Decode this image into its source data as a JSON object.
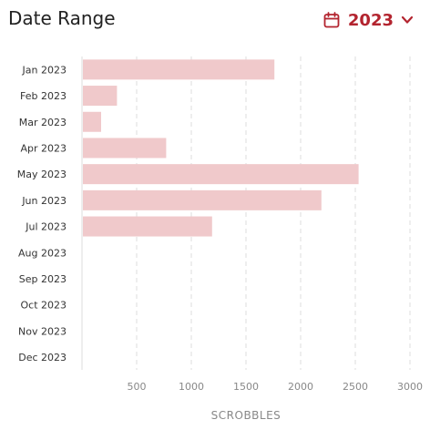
{
  "header": {
    "title": "Date Range",
    "year": "2023",
    "icons": {
      "calendar": "calendar-icon",
      "chevron": "chevron-down-icon"
    }
  },
  "colors": {
    "bar": "#f0c9cb",
    "accent": "#b3242f",
    "grid": "#dddddd",
    "tick": "#888888",
    "label": "#333333"
  },
  "chart_data": {
    "type": "bar",
    "orientation": "horizontal",
    "categories": [
      "Jan 2023",
      "Feb 2023",
      "Mar 2023",
      "Apr 2023",
      "May 2023",
      "Jun 2023",
      "Jul 2023",
      "Aug 2023",
      "Sep 2023",
      "Oct 2023",
      "Nov 2023",
      "Dec 2023"
    ],
    "values": [
      1760,
      320,
      175,
      770,
      2530,
      2190,
      1190,
      0,
      0,
      0,
      0,
      0
    ],
    "xlabel": "SCROBBLES",
    "xticks": [
      500,
      1000,
      1500,
      2000,
      2500,
      3000
    ],
    "xlim": [
      0,
      3000
    ],
    "grid": true
  }
}
